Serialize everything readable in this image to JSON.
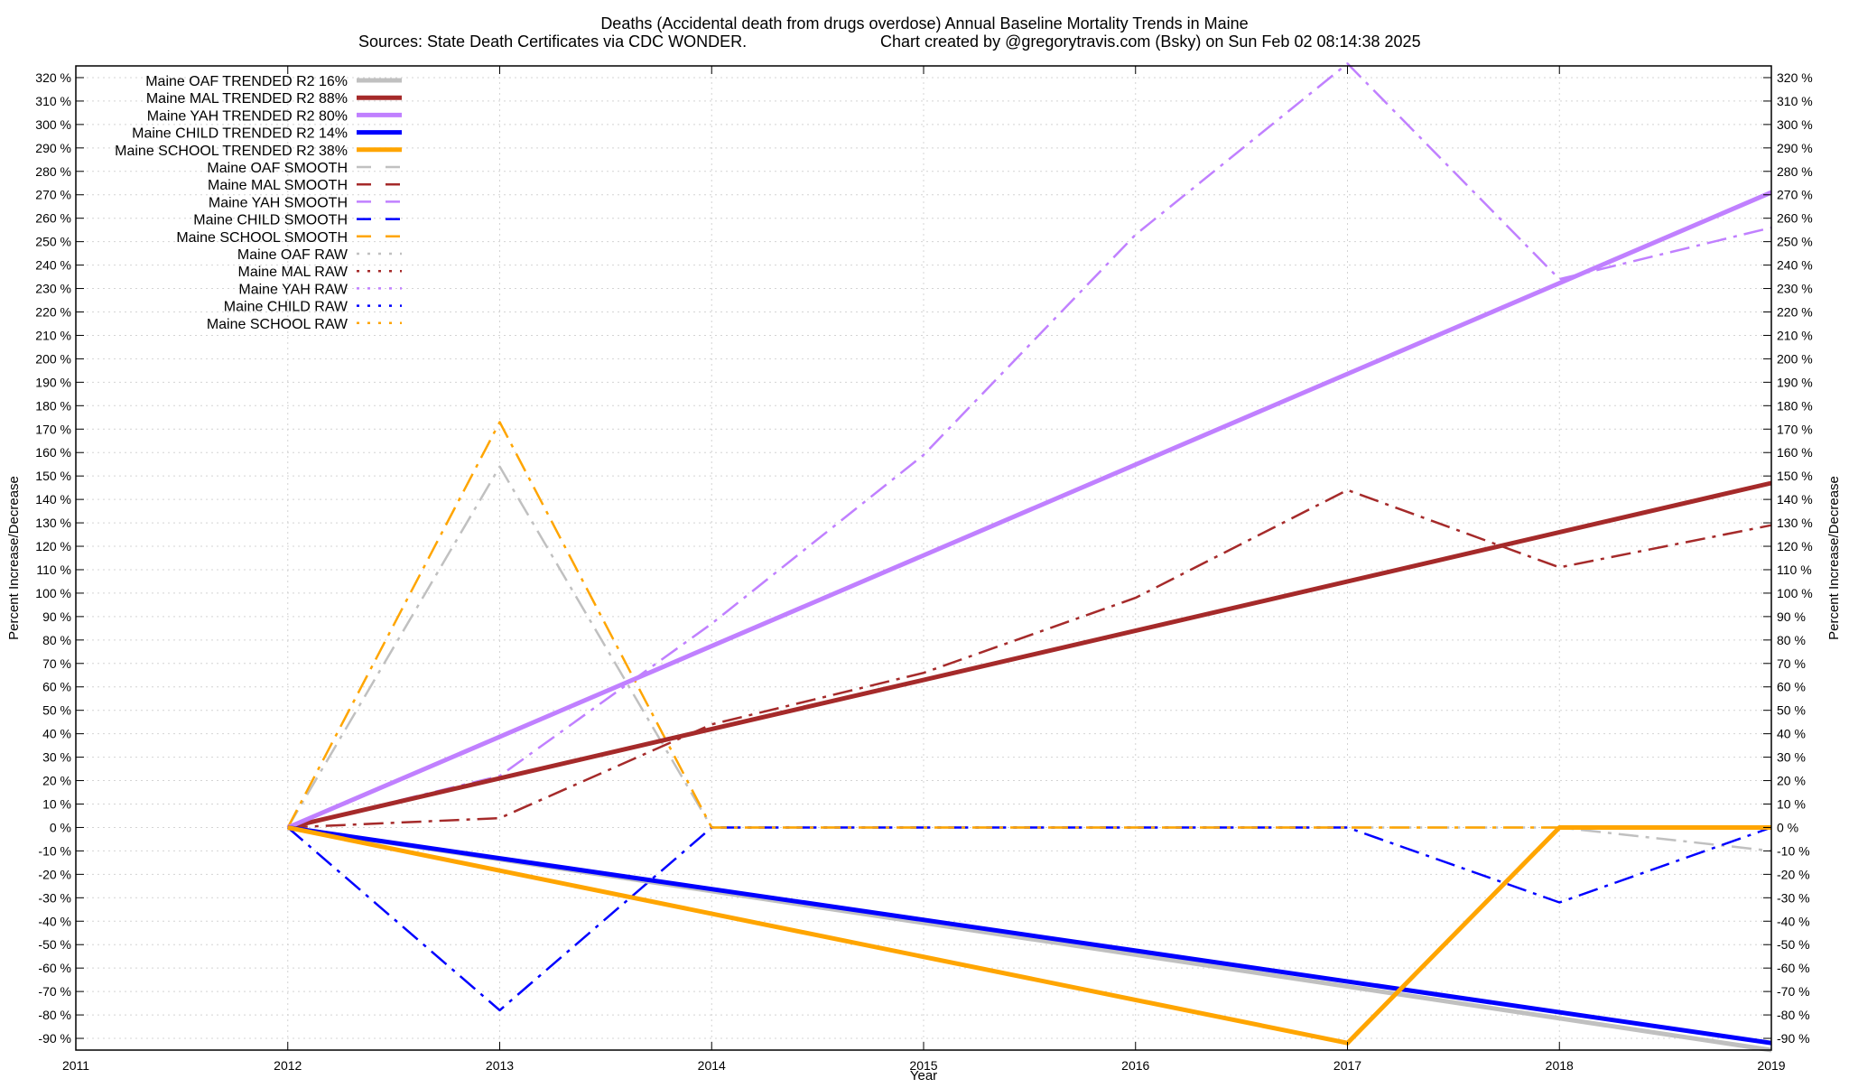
{
  "chart_data": {
    "type": "line",
    "title": "Deaths (Accidental death from drugs overdose)  Annual Baseline Mortality Trends in Maine",
    "subtitle_left": "Sources: State Death Certificates via CDC WONDER.",
    "subtitle_right": "Chart created by @gregorytravis.com (Bsky) on Sun Feb 02 08:14:38 2025",
    "xlabel": "Year",
    "ylabel_left": "Percent Increase/Decrease",
    "ylabel_right": "Percent Increase/Decrease",
    "xlim": [
      2011,
      2019
    ],
    "ylim": [
      -95,
      325
    ],
    "x_ticks": [
      2011,
      2012,
      2013,
      2014,
      2015,
      2016,
      2017,
      2018,
      2019
    ],
    "y_ticks": [
      -90,
      -80,
      -70,
      -60,
      -50,
      -40,
      -30,
      -20,
      -10,
      0,
      10,
      20,
      30,
      40,
      50,
      60,
      70,
      80,
      90,
      100,
      110,
      120,
      130,
      140,
      150,
      160,
      170,
      180,
      190,
      200,
      210,
      220,
      230,
      240,
      250,
      260,
      270,
      280,
      290,
      300,
      310,
      320
    ],
    "y_tick_suffix": " %",
    "grid": true,
    "legend_position": "top-left",
    "series": [
      {
        "name": "Maine OAF TRENDED R2  16%",
        "style": "solid",
        "color": "#c0c0c0",
        "width": 5,
        "x": [
          2012,
          2019
        ],
        "y": [
          0,
          -95
        ]
      },
      {
        "name": "Maine MAL TRENDED R2  88%",
        "style": "solid",
        "color": "#a52a2a",
        "width": 5,
        "x": [
          2012,
          2019
        ],
        "y": [
          0,
          147
        ]
      },
      {
        "name": "Maine YAH TRENDED R2  80%",
        "style": "solid",
        "color": "#c080ff",
        "width": 5,
        "x": [
          2012,
          2019
        ],
        "y": [
          0,
          271
        ]
      },
      {
        "name": "Maine CHILD TRENDED R2  14%",
        "style": "solid",
        "color": "#0000ff",
        "width": 5,
        "x": [
          2012,
          2019
        ],
        "y": [
          0,
          -92
        ]
      },
      {
        "name": "Maine SCHOOL TRENDED R2  38%",
        "style": "solid",
        "color": "#ffa500",
        "width": 5,
        "x": [
          2012,
          2017,
          2018,
          2019
        ],
        "y": [
          0,
          -92,
          0,
          0
        ]
      },
      {
        "name": "Maine OAF SMOOTH",
        "style": "dashdot",
        "color": "#c0c0c0",
        "width": 2.5,
        "x": [
          2012,
          2013,
          2014,
          2015,
          2016,
          2017,
          2018,
          2019
        ],
        "y": [
          0,
          154,
          0,
          0,
          0,
          0,
          0,
          -10
        ]
      },
      {
        "name": "Maine MAL SMOOTH",
        "style": "dashdot",
        "color": "#a52a2a",
        "width": 2.5,
        "x": [
          2012,
          2013,
          2014,
          2015,
          2016,
          2017,
          2018,
          2019
        ],
        "y": [
          0,
          4,
          44,
          66,
          98,
          144,
          111,
          129
        ]
      },
      {
        "name": "Maine YAH SMOOTH",
        "style": "dashdot",
        "color": "#c080ff",
        "width": 2.5,
        "x": [
          2012,
          2013,
          2014,
          2015,
          2016,
          2017,
          2018,
          2019
        ],
        "y": [
          0,
          22,
          87,
          159,
          253,
          326,
          234,
          256
        ]
      },
      {
        "name": "Maine CHILD SMOOTH",
        "style": "dashdot",
        "color": "#0000ff",
        "width": 2.5,
        "x": [
          2012,
          2013,
          2014,
          2015,
          2016,
          2017,
          2018,
          2019
        ],
        "y": [
          0,
          -78,
          0,
          0,
          0,
          0,
          -32,
          0
        ]
      },
      {
        "name": "Maine SCHOOL SMOOTH",
        "style": "dashdot",
        "color": "#ffa500",
        "width": 2.5,
        "x": [
          2012,
          2013,
          2014,
          2015,
          2016,
          2017,
          2018,
          2019
        ],
        "y": [
          0,
          173,
          0,
          0,
          0,
          0,
          0,
          0
        ]
      },
      {
        "name": "Maine OAF RAW",
        "style": "dotted",
        "color": "#c0c0c0",
        "width": 2.5,
        "x": [],
        "y": []
      },
      {
        "name": "Maine MAL RAW",
        "style": "dotted",
        "color": "#a52a2a",
        "width": 2.5,
        "x": [],
        "y": []
      },
      {
        "name": "Maine YAH RAW",
        "style": "dotted",
        "color": "#c080ff",
        "width": 2.5,
        "x": [],
        "y": []
      },
      {
        "name": "Maine CHILD RAW",
        "style": "dotted",
        "color": "#0000ff",
        "width": 2.5,
        "x": [],
        "y": []
      },
      {
        "name": "Maine SCHOOL RAW",
        "style": "dotted",
        "color": "#ffa500",
        "width": 2.5,
        "x": [],
        "y": []
      }
    ]
  }
}
